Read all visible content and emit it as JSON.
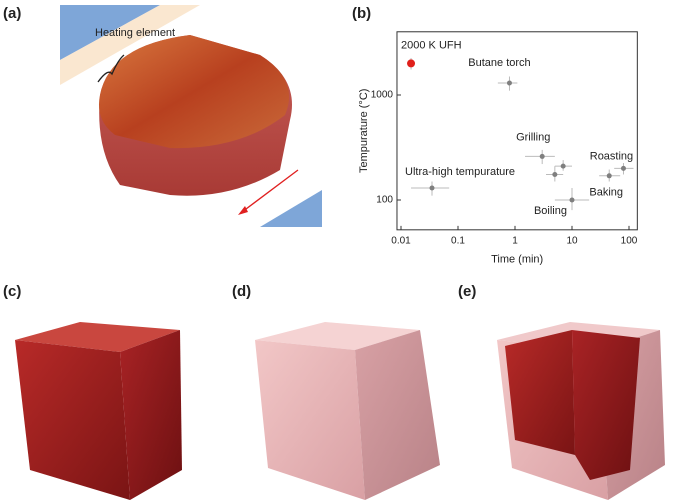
{
  "panels": {
    "a": {
      "label": "(a)",
      "annotation": "Heating element"
    },
    "b": {
      "label": "(b)"
    },
    "c": {
      "label": "(c)"
    },
    "d": {
      "label": "(d)"
    },
    "e": {
      "label": "(e)"
    }
  },
  "chart_data": {
    "type": "scatter",
    "x_label": "Time (min)",
    "y_label": "Tempurature (°C)",
    "xscale": "log",
    "yscale": "log",
    "xlim": [
      0.0085,
      140
    ],
    "ylim": [
      52,
      4000
    ],
    "xticks": [
      0.01,
      0.1,
      1,
      10,
      100
    ],
    "yticks": [
      100,
      1000
    ],
    "series": [
      {
        "color": "#e0201b",
        "x": [
          0.015
        ],
        "values": [
          2000
        ],
        "x_low": [
          0.014
        ],
        "x_high": [
          0.016
        ],
        "y_low": [
          1750
        ],
        "y_high": [
          2250
        ],
        "labels": [
          "2000 K UFH"
        ]
      },
      {
        "color": "#7f7f7f",
        "x": [
          0.8,
          3,
          7,
          5,
          0.035,
          10,
          45,
          80
        ],
        "values": [
          1300,
          260,
          210,
          175,
          130,
          100,
          170,
          200
        ],
        "x_low": [
          0.5,
          1.5,
          5,
          3.5,
          0.015,
          5,
          30,
          55
        ],
        "x_high": [
          1.1,
          5,
          10,
          7,
          0.07,
          20,
          70,
          120
        ],
        "y_low": [
          1100,
          220,
          190,
          150,
          110,
          80,
          150,
          175
        ],
        "y_high": [
          1500,
          300,
          240,
          210,
          150,
          130,
          195,
          225
        ],
        "labels": [
          "Butane torch",
          "Grilling",
          null,
          null,
          "Ultra-high tempurature",
          "Boiling",
          "Baking",
          "Roasting"
        ]
      }
    ]
  }
}
